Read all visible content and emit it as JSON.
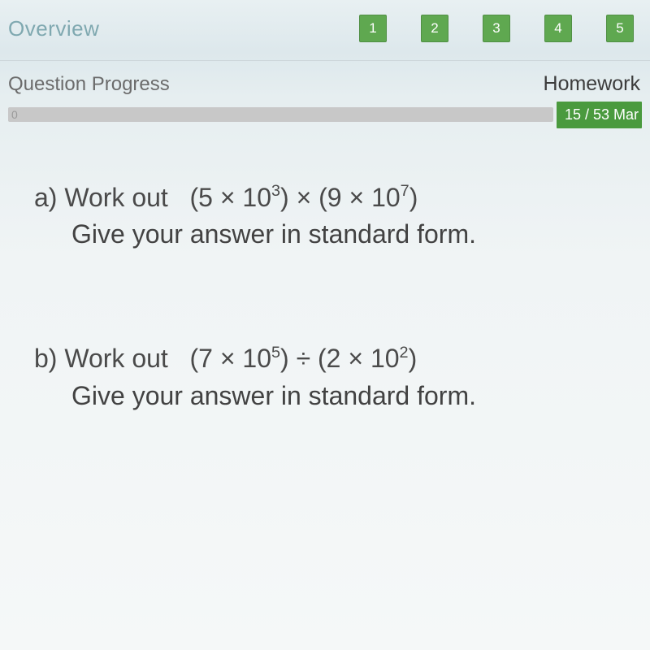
{
  "nav": {
    "overview_label": "Overview",
    "items": [
      {
        "label": "1"
      },
      {
        "label": "2"
      },
      {
        "label": "3"
      },
      {
        "label": "4"
      },
      {
        "label": "5"
      }
    ],
    "box_bg": "#5fa850"
  },
  "progress": {
    "label": "Question Progress",
    "homework_label": "Homework",
    "zero": "0",
    "marks": "15 / 53 Mar",
    "bar_bg": "#c8c8c8",
    "badge_bg": "#4a9a3e"
  },
  "questions": {
    "a": {
      "prefix": "a) Work out   ",
      "expr_part1": "(5 × 10",
      "exp1": "3",
      "expr_part2": ") × (9 × 10",
      "exp2": "7",
      "expr_part3": ")",
      "line2": "Give your answer in standard form."
    },
    "b": {
      "prefix": "b) Work out   ",
      "expr_part1": "(7 × 10",
      "exp1": "5",
      "expr_part2": ") ÷ (2 × 10",
      "exp2": "2",
      "expr_part3": ")",
      "line2": "Give your answer in standard form."
    }
  }
}
